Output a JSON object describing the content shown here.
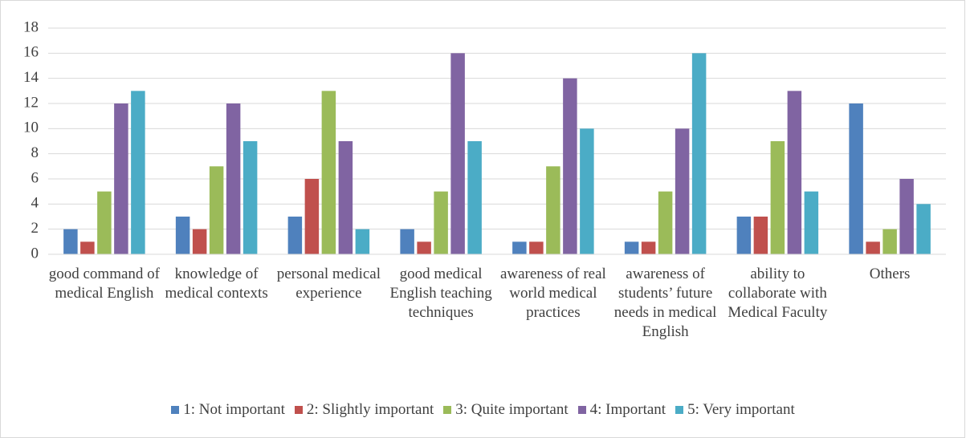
{
  "chart_data": {
    "type": "bar",
    "categories": [
      "good command of medical English",
      "knowledge of medical contexts",
      "personal medical experience",
      "good medical English teaching techniques",
      "awareness of real world medical practices",
      "awareness of students’ future needs in medical English",
      "ability to collaborate with Medical Faculty",
      "Others"
    ],
    "series": [
      {
        "name": "1: Not important",
        "color": "#4f81bd",
        "values": [
          2,
          3,
          3,
          2,
          1,
          1,
          3,
          12
        ]
      },
      {
        "name": "2: Slightly important",
        "color": "#c0504d",
        "values": [
          1,
          2,
          6,
          1,
          1,
          1,
          3,
          1
        ]
      },
      {
        "name": "3: Quite important",
        "color": "#9bbb59",
        "values": [
          5,
          7,
          13,
          5,
          7,
          5,
          9,
          2
        ]
      },
      {
        "name": "4: Important",
        "color": "#8064a2",
        "values": [
          12,
          12,
          9,
          16,
          14,
          10,
          13,
          6
        ]
      },
      {
        "name": "5: Very important",
        "color": "#4bacc6",
        "values": [
          13,
          9,
          2,
          9,
          10,
          16,
          5,
          4
        ]
      }
    ],
    "ylim": [
      0,
      18
    ],
    "yticks": [
      0,
      2,
      4,
      6,
      8,
      10,
      12,
      14,
      16,
      18
    ],
    "grid": true,
    "legend": "bottom"
  }
}
